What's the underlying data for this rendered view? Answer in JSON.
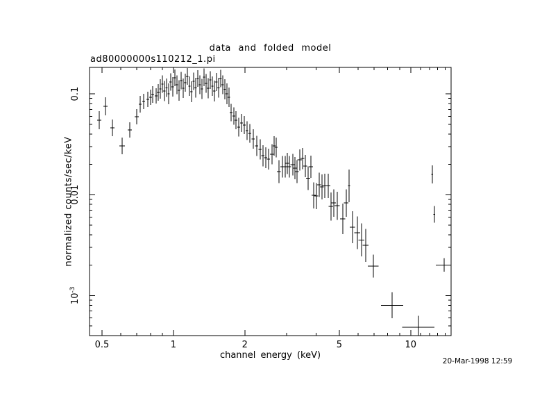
{
  "dataset_label": "ad80000000s110212_1.pi",
  "timestamp": "20-Mar-1998 12:59",
  "colors": {
    "background": "#ffffff",
    "foreground": "#000000"
  },
  "chart_data": {
    "type": "scatter",
    "title": "data and folded model",
    "xlabel": "channel energy (keV)",
    "ylabel": "normalized counts/sec/keV",
    "xscale": "log",
    "yscale": "log",
    "xlim": [
      0.443,
      14.8
    ],
    "ylim": [
      0.0004,
      0.183
    ],
    "grid": false,
    "legend": "none",
    "marker": "plus-with-error-bars",
    "xticks": {
      "major": [
        0.5,
        1,
        2,
        5,
        10
      ],
      "labels": [
        "0.5",
        "1",
        "2",
        "5",
        "10"
      ],
      "minor": [
        0.6,
        0.7,
        0.8,
        0.9,
        3,
        4,
        6,
        7,
        8,
        9,
        11,
        12,
        13,
        14
      ]
    },
    "yticks": {
      "major": [
        0.1,
        0.01,
        0.001
      ],
      "labels": [
        {
          "text": "0.1"
        },
        {
          "text": "0.01"
        },
        {
          "text": "10",
          "exp": "-3"
        }
      ],
      "minor": [
        0.09,
        0.08,
        0.07,
        0.06,
        0.05,
        0.04,
        0.03,
        0.02,
        0.009,
        0.008,
        0.007,
        0.006,
        0.005,
        0.004,
        0.003,
        0.002,
        0.0009,
        0.0008,
        0.0007,
        0.0006,
        0.0005,
        0.0004
      ]
    },
    "point_format": [
      "energy_keV",
      "rate_counts_s_keV",
      "err_factor_y",
      "halfwidth_factor_x"
    ],
    "points": [
      [
        0.487,
        0.0547,
        1.23,
        1.02
      ],
      [
        0.517,
        0.0752,
        1.23,
        1.02
      ],
      [
        0.553,
        0.0459,
        1.21,
        1.02
      ],
      [
        0.608,
        0.0304,
        1.21,
        1.027
      ],
      [
        0.654,
        0.0438,
        1.19,
        1.02
      ],
      [
        0.7,
        0.0592,
        1.19,
        1.02
      ],
      [
        0.724,
        0.0789,
        1.21,
        1.013
      ],
      [
        0.749,
        0.084,
        1.19,
        1.013
      ],
      [
        0.78,
        0.0881,
        1.19,
        1.013
      ],
      [
        0.801,
        0.0923,
        1.19,
        1.013
      ],
      [
        0.817,
        0.0984,
        1.21,
        1.013
      ],
      [
        0.845,
        0.0953,
        1.19,
        1.013
      ],
      [
        0.862,
        0.1032,
        1.21,
        1.013
      ],
      [
        0.88,
        0.112,
        1.25,
        1.011
      ],
      [
        0.898,
        0.125,
        1.22,
        1.011
      ],
      [
        0.916,
        0.107,
        1.26,
        1.011
      ],
      [
        0.935,
        0.115,
        1.23,
        1.011
      ],
      [
        0.954,
        0.1,
        1.27,
        1.011
      ],
      [
        0.973,
        0.131,
        1.22,
        1.011
      ],
      [
        0.993,
        0.117,
        1.25,
        1.011
      ],
      [
        1.013,
        0.144,
        1.21,
        1.011
      ],
      [
        1.034,
        0.123,
        1.24,
        1.011
      ],
      [
        1.055,
        0.108,
        1.26,
        1.011
      ],
      [
        1.077,
        0.135,
        1.22,
        1.011
      ],
      [
        1.099,
        0.114,
        1.25,
        1.011
      ],
      [
        1.121,
        0.129,
        1.23,
        1.011
      ],
      [
        1.144,
        0.149,
        1.21,
        1.011
      ],
      [
        1.168,
        0.119,
        1.25,
        1.011
      ],
      [
        1.191,
        0.105,
        1.27,
        1.011
      ],
      [
        1.216,
        0.133,
        1.22,
        1.011
      ],
      [
        1.24,
        0.115,
        1.25,
        1.011
      ],
      [
        1.266,
        0.142,
        1.21,
        1.011
      ],
      [
        1.292,
        0.123,
        1.24,
        1.011
      ],
      [
        1.318,
        0.112,
        1.26,
        1.011
      ],
      [
        1.345,
        0.146,
        1.22,
        1.011
      ],
      [
        1.372,
        0.127,
        1.24,
        1.011
      ],
      [
        1.4,
        0.114,
        1.26,
        1.011
      ],
      [
        1.429,
        0.137,
        1.22,
        1.011
      ],
      [
        1.458,
        0.119,
        1.25,
        1.011
      ],
      [
        1.487,
        0.107,
        1.27,
        1.011
      ],
      [
        1.518,
        0.131,
        1.23,
        1.011
      ],
      [
        1.549,
        0.115,
        1.25,
        1.011
      ],
      [
        1.58,
        0.142,
        1.22,
        1.011
      ],
      [
        1.612,
        0.123,
        1.24,
        1.011
      ],
      [
        1.646,
        0.111,
        1.26,
        1.011
      ],
      [
        1.679,
        0.1,
        1.27,
        1.011
      ],
      [
        1.713,
        0.0924,
        1.25,
        1.011
      ],
      [
        1.749,
        0.0651,
        1.22,
        1.013
      ],
      [
        1.797,
        0.0602,
        1.22,
        1.013
      ],
      [
        1.833,
        0.0547,
        1.23,
        1.013
      ],
      [
        1.883,
        0.0467,
        1.24,
        1.013
      ],
      [
        1.935,
        0.0513,
        1.23,
        1.013
      ],
      [
        1.987,
        0.049,
        1.23,
        1.013
      ],
      [
        2.041,
        0.0431,
        1.24,
        1.013
      ],
      [
        2.097,
        0.0404,
        1.24,
        1.015
      ],
      [
        2.169,
        0.0356,
        1.25,
        1.015
      ],
      [
        2.244,
        0.0304,
        1.26,
        1.015
      ],
      [
        2.321,
        0.0281,
        1.26,
        1.015
      ],
      [
        2.383,
        0.0243,
        1.27,
        1.015
      ],
      [
        2.449,
        0.0232,
        1.27,
        1.015
      ],
      [
        2.516,
        0.0225,
        1.27,
        1.015
      ],
      [
        2.602,
        0.0251,
        1.26,
        1.018
      ],
      [
        2.655,
        0.0304,
        1.25,
        1.013
      ],
      [
        2.709,
        0.0294,
        1.25,
        1.013
      ],
      [
        2.782,
        0.0169,
        1.3,
        1.018
      ],
      [
        2.878,
        0.0189,
        1.28,
        1.018
      ],
      [
        2.957,
        0.0189,
        1.28,
        1.018
      ],
      [
        3.017,
        0.0204,
        1.27,
        1.018
      ],
      [
        3.079,
        0.0189,
        1.28,
        1.018
      ],
      [
        3.184,
        0.0198,
        1.28,
        1.022
      ],
      [
        3.249,
        0.0183,
        1.29,
        1.018
      ],
      [
        3.315,
        0.0169,
        1.3,
        1.018
      ],
      [
        3.406,
        0.0221,
        1.27,
        1.022
      ],
      [
        3.499,
        0.0228,
        1.27,
        1.018
      ],
      [
        3.594,
        0.0192,
        1.29,
        1.018
      ],
      [
        3.693,
        0.0146,
        1.31,
        1.02
      ],
      [
        3.793,
        0.0189,
        1.29,
        1.02
      ],
      [
        3.896,
        0.00984,
        1.35,
        1.02
      ],
      [
        4.002,
        0.00968,
        1.35,
        1.02
      ],
      [
        4.111,
        0.0125,
        1.32,
        1.02
      ],
      [
        4.223,
        0.0119,
        1.33,
        1.02
      ],
      [
        4.338,
        0.0122,
        1.32,
        1.022
      ],
      [
        4.487,
        0.0122,
        1.32,
        1.022
      ],
      [
        4.61,
        0.00764,
        1.38,
        1.022
      ],
      [
        4.736,
        0.00826,
        1.37,
        1.022
      ],
      [
        4.898,
        0.00776,
        1.38,
        1.025
      ],
      [
        5.171,
        0.00574,
        1.42,
        1.025
      ],
      [
        5.348,
        0.00826,
        1.37,
        1.022
      ],
      [
        5.493,
        0.0122,
        1.45,
        1.01
      ],
      [
        5.683,
        0.00474,
        1.44,
        1.025
      ],
      [
        5.956,
        0.00418,
        1.45,
        1.028
      ],
      [
        6.201,
        0.00356,
        1.46,
        1.028
      ],
      [
        6.456,
        0.00314,
        1.46,
        1.03
      ],
      [
        6.95,
        0.00195,
        1.3,
        1.055
      ],
      [
        8.34,
        0.0008,
        1.35,
        1.114
      ],
      [
        10.77,
        0.000482,
        1.3,
        1.168
      ],
      [
        12.32,
        0.0159,
        1.23,
        1.007
      ],
      [
        12.57,
        0.0064,
        1.21,
        1.007
      ],
      [
        13.82,
        0.00201,
        1.17,
        1.084
      ]
    ]
  }
}
